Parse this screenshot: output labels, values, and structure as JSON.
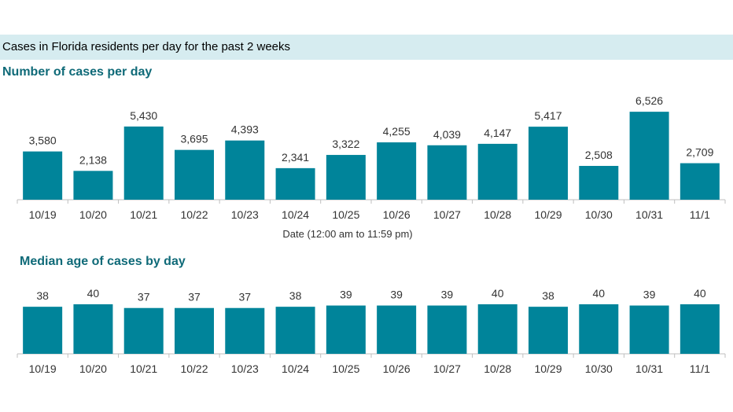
{
  "banner": {
    "title": "Cases in Florida residents per day for the past 2 weeks"
  },
  "colors": {
    "bar": "#00849a",
    "banner_bg": "#d6ecf0",
    "section_title": "#0f6a78"
  },
  "chart_data": [
    {
      "type": "bar",
      "title": "Number of cases per day",
      "xlabel": "Date (12:00 am to 11:59 pm)",
      "ylabel": "",
      "categories": [
        "10/19",
        "10/20",
        "10/21",
        "10/22",
        "10/23",
        "10/24",
        "10/25",
        "10/26",
        "10/27",
        "10/28",
        "10/29",
        "10/30",
        "10/31",
        "11/1"
      ],
      "values": [
        3580,
        2138,
        5430,
        3695,
        4393,
        2341,
        3322,
        4255,
        4039,
        4147,
        5417,
        2508,
        6526,
        2709
      ],
      "value_labels": [
        "3,580",
        "2,138",
        "5,430",
        "3,695",
        "4,393",
        "2,341",
        "3,322",
        "4,255",
        "4,039",
        "4,147",
        "5,417",
        "2,508",
        "6,526",
        "2,709"
      ],
      "ylim": [
        0,
        7000
      ],
      "grid": false
    },
    {
      "type": "bar",
      "title": "Median age of cases by day",
      "xlabel": "",
      "ylabel": "",
      "categories": [
        "10/19",
        "10/20",
        "10/21",
        "10/22",
        "10/23",
        "10/24",
        "10/25",
        "10/26",
        "10/27",
        "10/28",
        "10/29",
        "10/30",
        "10/31",
        "11/1"
      ],
      "values": [
        38,
        40,
        37,
        37,
        37,
        38,
        39,
        39,
        39,
        40,
        38,
        40,
        39,
        40
      ],
      "value_labels": [
        "38",
        "40",
        "37",
        "37",
        "37",
        "38",
        "39",
        "39",
        "39",
        "40",
        "38",
        "40",
        "39",
        "40"
      ],
      "ylim": [
        0,
        40
      ],
      "grid": false
    }
  ]
}
